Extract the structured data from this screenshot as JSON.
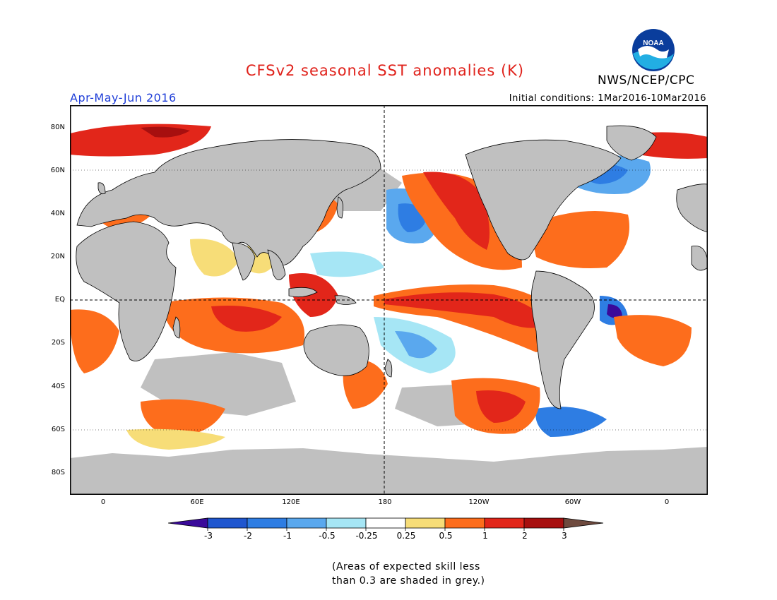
{
  "header": {
    "title": "CFSv2 seasonal SST anomalies (K)",
    "agency": "NWS/NCEP/CPC",
    "period": "Apr-May-Jun 2016",
    "initial_conditions": "Initial conditions: 1Mar2016-10Mar2016",
    "logo_text": "NOAA"
  },
  "map": {
    "projection": "cylindrical",
    "lat_labels": [
      "80N",
      "60N",
      "40N",
      "20N",
      "EQ",
      "20S",
      "40S",
      "60S",
      "80S"
    ],
    "lon_labels": [
      "0",
      "60E",
      "120E",
      "180",
      "120W",
      "60W",
      "0"
    ],
    "land_color": "#c0c0c0",
    "ocean_color": "#ffffff"
  },
  "colorbar": {
    "tick_labels": [
      "-3",
      "-2",
      "-1",
      "-0.5",
      "-0.25",
      "0.25",
      "0.5",
      "1",
      "2",
      "3"
    ],
    "colors": [
      "#3a0a9a",
      "#1f56cf",
      "#2e7de3",
      "#5aa8ee",
      "#a6e6f5",
      "#ffffff",
      "#f7dd78",
      "#fd6d1c",
      "#e2261a",
      "#a70f0f",
      "#6e4a3e"
    ]
  },
  "footnote": {
    "line1": "(Areas of expected skill less",
    "line2": "than 0.3 are shaded in grey.)"
  }
}
